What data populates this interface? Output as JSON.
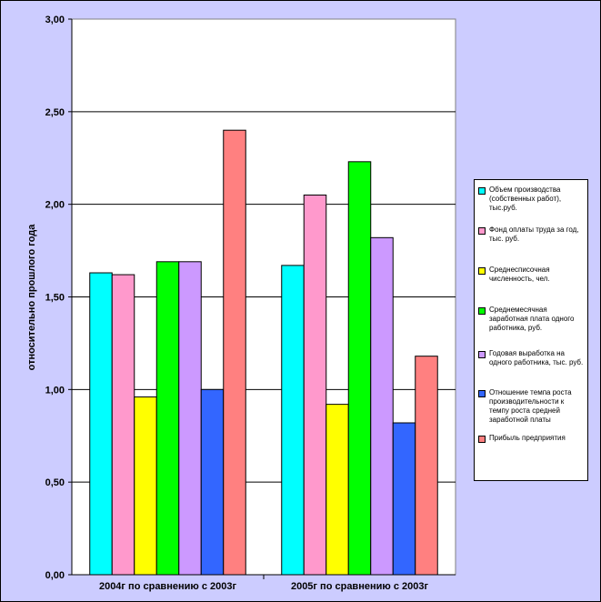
{
  "chart_data": {
    "type": "bar",
    "ylabel": "относительно прошлого года",
    "ylim": [
      0,
      3
    ],
    "yticks": [
      "0,00",
      "0,50",
      "1,00",
      "1,50",
      "2,00",
      "2,50",
      "3,00"
    ],
    "grid": true,
    "legend_position": "right",
    "categories": [
      "2004г по сравнению с 2003г",
      "2005г по сравнению с 2003г"
    ],
    "series": [
      {
        "name": "Объем производства (собственных работ), тыс.руб.",
        "color": "#00ffff",
        "values": [
          1.63,
          1.67
        ]
      },
      {
        "name": "Фонд оплаты труда за год, тыс. руб.",
        "color": "#ff99cc",
        "values": [
          1.62,
          2.05
        ]
      },
      {
        "name": "Среднесписочная численность, чел.",
        "color": "#ffff00",
        "values": [
          0.96,
          0.92
        ]
      },
      {
        "name": "Среднемесячная заработная плата одного работника, руб.",
        "color": "#00ff00",
        "values": [
          1.69,
          2.23
        ]
      },
      {
        "name": "Годовая выработка на одного работника, тыс. руб.",
        "color": "#cc99ff",
        "values": [
          1.69,
          1.82
        ]
      },
      {
        "name": "Отношение темпа роста производительности к темпу роста средней заработной платы",
        "color": "#3366ff",
        "values": [
          1.0,
          0.82
        ]
      },
      {
        "name": "Прибыль предприятия",
        "color": "#ff8080",
        "values": [
          2.4,
          1.18
        ]
      }
    ]
  }
}
